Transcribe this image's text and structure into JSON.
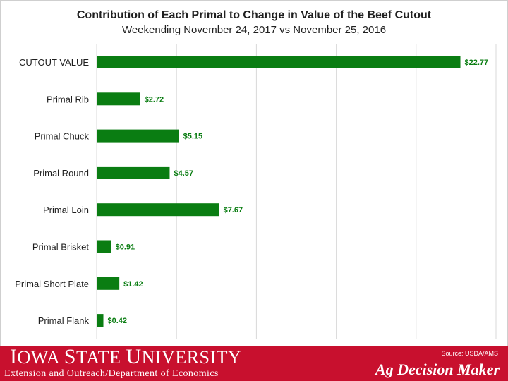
{
  "chart_data": {
    "type": "bar",
    "orientation": "horizontal",
    "title": "Contribution of Each Primal to Change in Value of the Beef Cutout",
    "subtitle": "Weekending November 24, 2017 vs November 25, 2016",
    "categories": [
      "CUTOUT VALUE",
      "Primal Rib",
      "Primal Chuck",
      "Primal Round",
      "Primal Loin",
      "Primal Brisket",
      "Primal Short Plate",
      "Primal Flank"
    ],
    "values": [
      22.77,
      2.72,
      5.15,
      4.57,
      7.67,
      0.91,
      1.42,
      0.42
    ],
    "data_labels": [
      "$22.77",
      "$2.72",
      "$5.15",
      "$4.57",
      "$7.67",
      "$0.91",
      "$1.42",
      "$0.42"
    ],
    "xlim": [
      0,
      25
    ],
    "gridlines": [
      5,
      10,
      15,
      20,
      25
    ],
    "bar_color": "#0a7d12",
    "label_color": "#0a7d12",
    "grid": true,
    "xlabel": "",
    "ylabel": ""
  },
  "footer": {
    "university_initial_1": "I",
    "university_rest_1": "OWA ",
    "university_initial_2": "S",
    "university_rest_2": "TATE ",
    "university_initial_3": "U",
    "university_rest_3": "NIVERSITY",
    "department": "Extension and Outreach/Department of Economics",
    "source": "Source: USDA/AMS",
    "brand": "Ag Decision Maker",
    "background_color": "#c8102e"
  }
}
